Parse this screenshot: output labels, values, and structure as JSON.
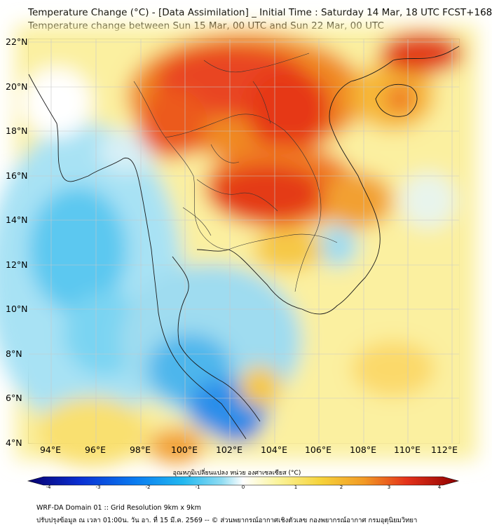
{
  "title": {
    "line1": "Temperature Change (°C) - [Data Assimilation] _ Initial Time : Saturday 14 Mar, 18 UTC FCST+168",
    "line2": "Temperature change between Sun 15 Mar, 00 UTC and Sun 22 Mar, 00 UTC"
  },
  "axes": {
    "lat_labels": [
      "22°N",
      "20°N",
      "18°N",
      "16°N",
      "14°N",
      "12°N",
      "10°N",
      "8°N",
      "6°N",
      "4°N"
    ],
    "lon_labels": [
      "94°E",
      "96°E",
      "98°E",
      "100°E",
      "102°E",
      "104°E",
      "106°E",
      "108°E",
      "110°E",
      "112°E"
    ]
  },
  "colorbar": {
    "title": "อุณหภูมิเปลี่ยนแปลง หน่วย องศาเซลเซียส (°C)",
    "ticks": [
      "-4",
      "-3",
      "-2",
      "-1",
      "0",
      "1",
      "2",
      "3",
      "4"
    ],
    "min": -4,
    "max": 4,
    "colors": [
      "#08006e",
      "#0a2fd2",
      "#0a7cf0",
      "#22b8f0",
      "#8fdcf2",
      "#ffffff",
      "#fbf49c",
      "#f6d33a",
      "#f29a24",
      "#e4321a",
      "#8e0000"
    ]
  },
  "footer": {
    "line1": "WRF-DA Domain 01 :: Grid Resolution 9km x 9km",
    "line2": "ปรับปรุงข้อมูล ณ เวลา 01:00น. วัน อา. ที่ 15 มี.ค. 2569 -- © ส่วนพยากรณ์อากาศเชิงตัวเลข กองพยากรณ์อากาศ กรมอุตุนิยมวิทยา"
  }
}
